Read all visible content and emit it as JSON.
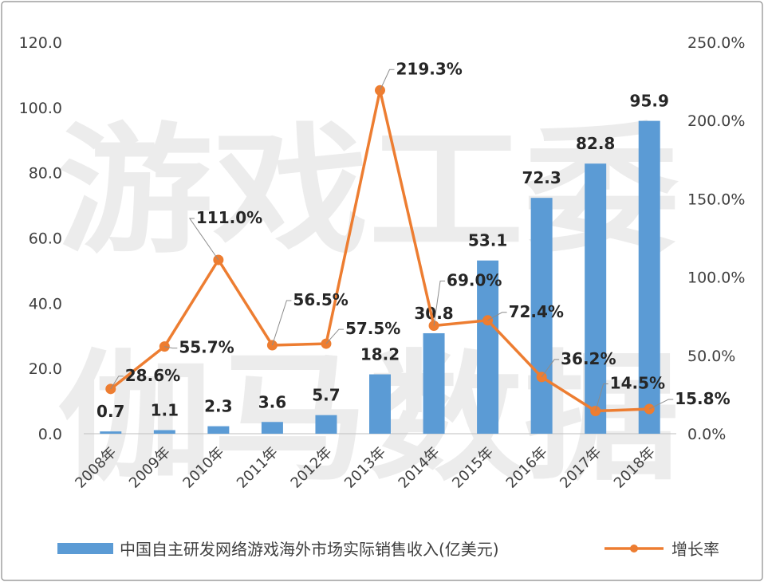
{
  "watermark": {
    "line1": "游戏工委",
    "line2": "伽马数据"
  },
  "legend": {
    "bar_series": "中国自主研发网络游戏海外市场实际销售收入(亿美元)",
    "line_series": "增长率"
  },
  "colors": {
    "bar": "#5b9bd5",
    "line": "#ed7d31"
  },
  "chart_data": {
    "type": "bar",
    "categories": [
      "2008年",
      "2009年",
      "2010年",
      "2011年",
      "2012年",
      "2013年",
      "2014年",
      "2015年",
      "2016年",
      "2017年",
      "2018年"
    ],
    "series": [
      {
        "name": "中国自主研发网络游戏海外市场实际销售收入(亿美元)",
        "type": "bar",
        "axis": "left",
        "values": [
          0.7,
          1.1,
          2.3,
          3.6,
          5.7,
          18.2,
          30.8,
          53.1,
          72.3,
          82.8,
          95.9
        ],
        "labels": [
          "0.7",
          "1.1",
          "2.3",
          "3.6",
          "5.7",
          "18.2",
          "30.8",
          "53.1",
          "72.3",
          "82.8",
          "95.9"
        ]
      },
      {
        "name": "增长率",
        "type": "line",
        "axis": "right",
        "values": [
          28.6,
          55.7,
          111.0,
          56.5,
          57.5,
          219.3,
          69.0,
          72.4,
          36.2,
          14.5,
          15.8
        ],
        "labels": [
          "28.6%",
          "55.7%",
          "111.0%",
          "56.5%",
          "57.5%",
          "219.3%",
          "69.0%",
          "72.4%",
          "36.2%",
          "14.5%",
          "15.8%"
        ]
      }
    ],
    "y_left": {
      "ylim": [
        0,
        120
      ],
      "ticks": [
        "0.0",
        "20.0",
        "40.0",
        "60.0",
        "80.0",
        "100.0",
        "120.0"
      ]
    },
    "y_right": {
      "ylim": [
        0,
        250
      ],
      "ticks": [
        "0.0%",
        "50.0%",
        "100.0%",
        "150.0%",
        "200.0%",
        "250.0%"
      ]
    },
    "grid": false,
    "legend_position": "bottom"
  }
}
